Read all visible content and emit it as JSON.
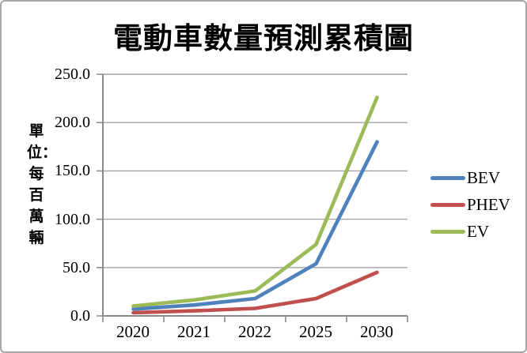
{
  "window": {
    "background": "#FFFFFF",
    "border_color": "#A6A6A6"
  },
  "colors": {
    "axis": "#8A8A8A",
    "grid": "#A3A3A3",
    "text": "#000000"
  },
  "chart_data": {
    "type": "line",
    "title": "電動車數量預測累積圖",
    "ylabel": "單位：每百萬輛",
    "xlabel": "",
    "categories": [
      "2020",
      "2021",
      "2022",
      "2025",
      "2030"
    ],
    "series": [
      {
        "name": "BEV",
        "color": "#4F81BD",
        "values": [
          7.0,
          11.3,
          18.0,
          54.0,
          180.0
        ]
      },
      {
        "name": "PHEV",
        "color": "#C0504D",
        "values": [
          3.3,
          5.2,
          7.8,
          18.0,
          45.0
        ]
      },
      {
        "name": "EV",
        "color": "#9BBB59",
        "values": [
          10.2,
          16.5,
          25.8,
          74.0,
          226.0
        ]
      }
    ],
    "ylim": [
      0,
      250
    ],
    "ytick_labels": [
      "0.0",
      "50.0",
      "100.0",
      "150.0",
      "200.0",
      "250.0"
    ],
    "grid": true,
    "legend_position": "right"
  }
}
